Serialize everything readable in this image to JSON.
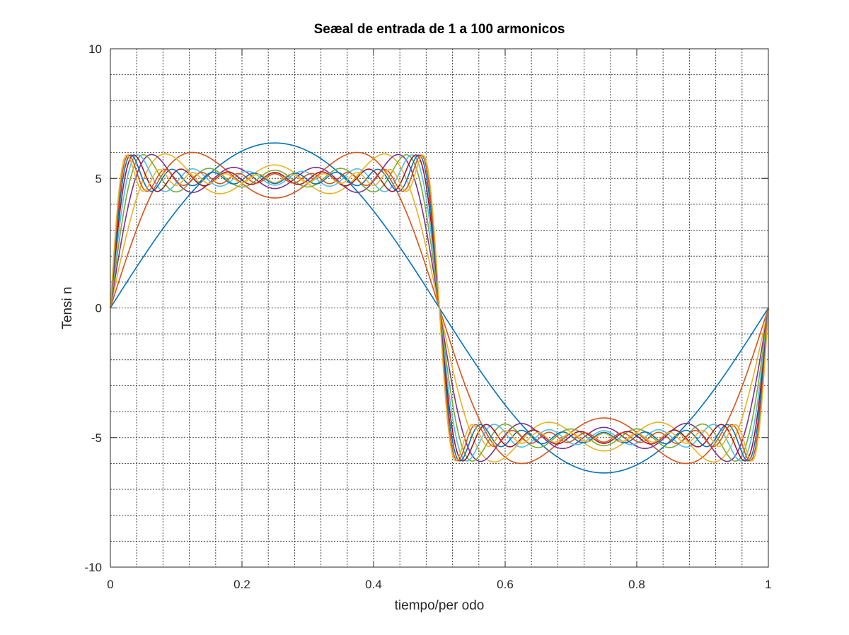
{
  "chart_data": {
    "type": "line",
    "title": "Seæal de entrada de 1 a 100 armonicos",
    "xlabel": "tiempo/per odo",
    "ylabel": "Tensi n",
    "xlim": [
      0,
      1
    ],
    "ylim": [
      -10,
      10
    ],
    "x_ticks": [
      "0",
      "0.2",
      "0.4",
      "0.6",
      "0.8",
      "1"
    ],
    "y_ticks": [
      "-10",
      "-5",
      "0",
      "5",
      "10"
    ],
    "grid": "major and minor, dotted",
    "signal": {
      "description": "square wave partial Fourier sums",
      "amplitude": 5,
      "period": 1,
      "odd_harmonic_sums": [
        1,
        3,
        5,
        7,
        9,
        11,
        13,
        15,
        17,
        19
      ]
    },
    "series": [
      {
        "name": "",
        "color": "#0072BD",
        "harmonics_up_to": 1
      },
      {
        "name": "",
        "color": "#D95319",
        "harmonics_up_to": 3
      },
      {
        "name": "",
        "color": "#EDB120",
        "harmonics_up_to": 5
      },
      {
        "name": "",
        "color": "#7E2F8E",
        "harmonics_up_to": 7
      },
      {
        "name": "",
        "color": "#77AC30",
        "harmonics_up_to": 9
      },
      {
        "name": "",
        "color": "#4DBEEE",
        "harmonics_up_to": 11
      },
      {
        "name": "",
        "color": "#A2142F",
        "harmonics_up_to": 13
      },
      {
        "name": "",
        "color": "#0072BD",
        "harmonics_up_to": 15
      },
      {
        "name": "",
        "color": "#D95319",
        "harmonics_up_to": 17
      },
      {
        "name": "",
        "color": "#EDB120",
        "harmonics_up_to": 19
      }
    ]
  }
}
